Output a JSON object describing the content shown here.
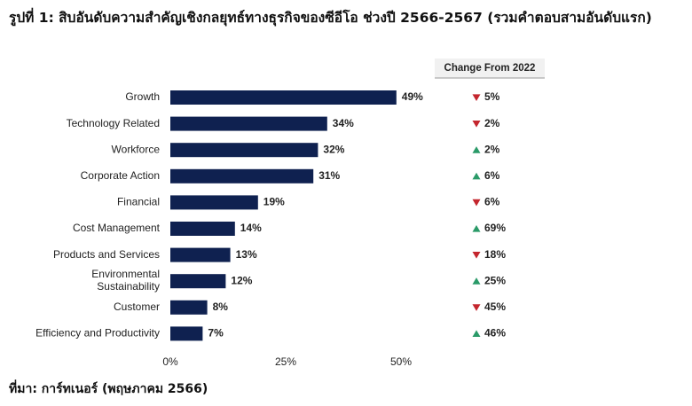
{
  "chart_data": {
    "type": "bar",
    "orientation": "horizontal",
    "title": "รูปที่ 1: สิบอันดับความสำคัญเชิงกลยุทธ์ทางธุรกิจของซีอีโอ ช่วงปี 2566-2567 (รวมคำตอบสามอันดับแรก)",
    "source": "ที่มา: การ์ทเนอร์ (พฤษภาคม 2566)",
    "categories": [
      "Growth",
      "Technology Related",
      "Workforce",
      "Corporate Action",
      "Financial",
      "Cost Management",
      "Products and Services",
      "Environmental Sustainability",
      "Customer",
      "Efficiency and Productivity"
    ],
    "values": [
      49,
      34,
      32,
      31,
      19,
      14,
      13,
      12,
      8,
      7
    ],
    "value_labels": [
      "49%",
      "34%",
      "32%",
      "31%",
      "19%",
      "14%",
      "13%",
      "12%",
      "8%",
      "7%"
    ],
    "color": "#0f2150",
    "xlim": [
      0,
      50
    ],
    "xticks": [
      {
        "value": 0,
        "label": "0%"
      },
      {
        "value": 25,
        "label": "25%"
      },
      {
        "value": 50,
        "label": "50%"
      }
    ],
    "change": {
      "title": "Change From 2022",
      "values": [
        5,
        2,
        2,
        6,
        6,
        69,
        18,
        25,
        45,
        46
      ],
      "value_labels": [
        "5%",
        "2%",
        "2%",
        "6%",
        "6%",
        "69%",
        "18%",
        "25%",
        "45%",
        "46%"
      ],
      "directions": [
        "down",
        "down",
        "up",
        "up",
        "down",
        "up",
        "down",
        "up",
        "down",
        "up"
      ],
      "colors": {
        "up": "#2a9a68",
        "down": "#c4262e"
      }
    }
  }
}
